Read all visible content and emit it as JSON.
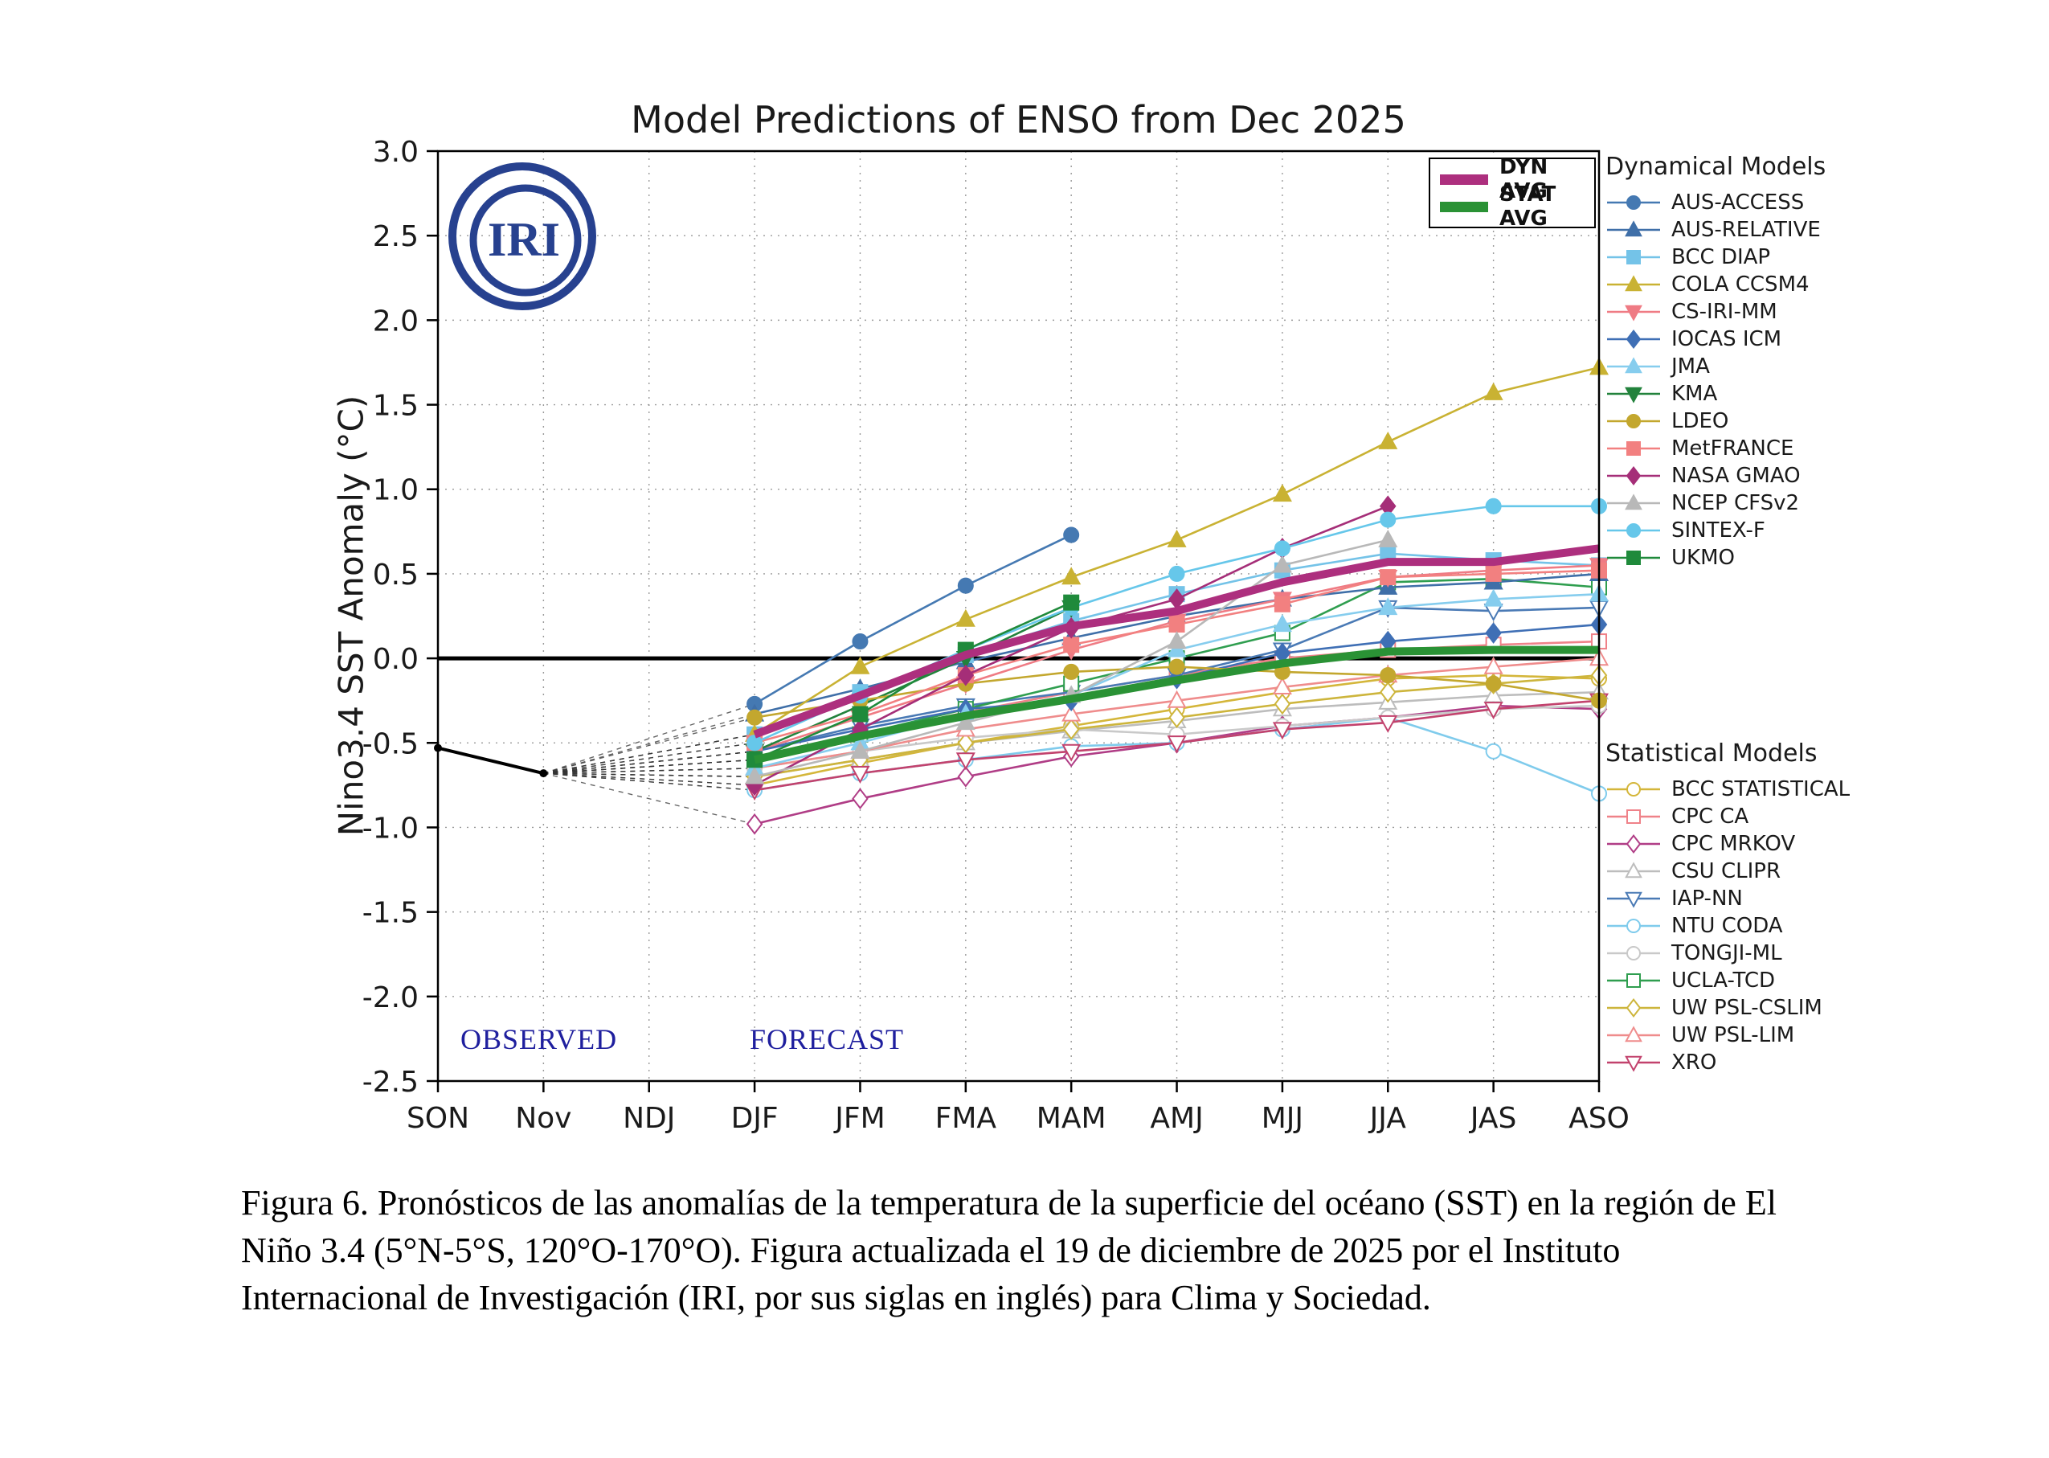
{
  "labels": {
    "observed": "OBSERVED",
    "forecast": "FORECAST",
    "dynamical_header": "Dynamical Models",
    "statistical_header": "Statistical Models",
    "logo_text": "IRI"
  },
  "caption": "Figura 6. Pronósticos de las anomalías de la temperatura de la superficie del océano (SST) en la región de El Niño 3.4 (5°N-5°S, 120°O-170°O). Figura actualizada el 19 de diciembre de 2025 por el Instituto Internacional de Investigación (IRI, por sus siglas en inglés) para Clima y Sociedad.",
  "chart_data": {
    "type": "line",
    "title": "Model Predictions of ENSO from Dec 2025",
    "ylabel": "Nino3.4 SST Anomaly (°C)",
    "ylim": [
      -2.5,
      3.0
    ],
    "ytick_step": 0.5,
    "grid": true,
    "x_categories": [
      "SON",
      "Nov",
      "NDJ",
      "DJF",
      "JFM",
      "FMA",
      "MAM",
      "AMJ",
      "MJJ",
      "JJA",
      "JAS",
      "ASO"
    ],
    "forecast_start_index": 3,
    "observed": {
      "x": [
        "SON",
        "Nov"
      ],
      "values": [
        -0.53,
        -0.68
      ]
    },
    "averages": [
      {
        "name": "DYN AVG",
        "color": "#ad2f7e",
        "values": [
          -0.45,
          -0.22,
          0.02,
          0.19,
          0.28,
          0.45,
          0.57,
          0.57,
          0.65
        ]
      },
      {
        "name": "STAT AVG",
        "color": "#2a9235",
        "values": [
          -0.6,
          -0.46,
          -0.34,
          -0.24,
          -0.13,
          -0.03,
          0.04,
          0.05,
          0.05
        ]
      }
    ],
    "dynamical_models": [
      {
        "name": "AUS-ACCESS",
        "color": "#4579b2",
        "marker": "circle",
        "fill": "solid",
        "values": [
          -0.27,
          0.1,
          0.43,
          0.73
        ]
      },
      {
        "name": "AUS-RELATIVE",
        "color": "#3f6fa8",
        "marker": "triangle",
        "fill": "solid",
        "values": [
          -0.33,
          -0.18,
          -0.02,
          0.12,
          0.25,
          0.35,
          0.42,
          0.45,
          0.5
        ]
      },
      {
        "name": "BCC DIAP",
        "color": "#74c3e8",
        "marker": "square",
        "fill": "solid",
        "values": [
          -0.45,
          -0.2,
          0.02,
          0.22,
          0.38,
          0.52,
          0.62,
          0.58,
          0.55
        ]
      },
      {
        "name": "COLA CCSM4",
        "color": "#c9b233",
        "marker": "triangle",
        "fill": "solid",
        "values": [
          -0.45,
          -0.05,
          0.23,
          0.48,
          0.7,
          0.97,
          1.28,
          1.57,
          1.72
        ]
      },
      {
        "name": "CS-IRI-MM",
        "color": "#ef7b84",
        "marker": "triangle-down",
        "fill": "solid",
        "values": [
          -0.55,
          -0.35,
          -0.15,
          0.05,
          0.22,
          0.35,
          0.48,
          0.52,
          0.55
        ]
      },
      {
        "name": "IOCAS ICM",
        "color": "#3f6fb5",
        "marker": "diamond",
        "fill": "solid",
        "values": [
          -0.55,
          -0.42,
          -0.3,
          -0.25,
          -0.12,
          0.03,
          0.1,
          0.15,
          0.2
        ]
      },
      {
        "name": "JMA",
        "color": "#86cdee",
        "marker": "triangle",
        "fill": "solid",
        "values": [
          -0.65,
          -0.5,
          -0.33,
          -0.22,
          0.05,
          0.2,
          0.3,
          0.35,
          0.38
        ]
      },
      {
        "name": "KMA",
        "color": "#22823c",
        "marker": "triangle-down",
        "fill": "solid",
        "values": [
          -0.55,
          -0.28,
          0.0,
          0.3
        ]
      },
      {
        "name": "LDEO",
        "color": "#c3a72e",
        "marker": "circle",
        "fill": "solid",
        "values": [
          -0.35,
          -0.25,
          -0.15,
          -0.08,
          -0.05,
          -0.08,
          -0.1,
          -0.15,
          -0.25
        ]
      },
      {
        "name": "MetFRANCE",
        "color": "#f28080",
        "marker": "square",
        "fill": "solid",
        "values": [
          -0.5,
          -0.33,
          -0.1,
          0.08,
          0.2,
          0.32,
          0.48,
          0.5,
          0.52
        ]
      },
      {
        "name": "NASA GMAO",
        "color": "#a52e78",
        "marker": "diamond",
        "fill": "solid",
        "values": [
          -0.75,
          -0.42,
          -0.1,
          0.18,
          0.35,
          0.65,
          0.9
        ]
      },
      {
        "name": "NCEP CFSv2",
        "color": "#b8b8b8",
        "marker": "triangle",
        "fill": "solid",
        "values": [
          -0.7,
          -0.55,
          -0.38,
          -0.22,
          0.1,
          0.55,
          0.7
        ]
      },
      {
        "name": "SINTEX-F",
        "color": "#66c7ea",
        "marker": "circle",
        "fill": "solid",
        "values": [
          -0.5,
          -0.22,
          0.05,
          0.3,
          0.5,
          0.65,
          0.82,
          0.9,
          0.9
        ]
      },
      {
        "name": "UKMO",
        "color": "#1f8a3b",
        "marker": "square",
        "fill": "solid",
        "values": [
          -0.6,
          -0.33,
          0.05,
          0.33
        ]
      }
    ],
    "statistical_models": [
      {
        "name": "BCC STATISTICAL",
        "color": "#d4b63a",
        "marker": "circle",
        "fill": "open",
        "values": [
          -0.75,
          -0.62,
          -0.5,
          -0.4,
          -0.3,
          -0.2,
          -0.12,
          -0.1,
          -0.12
        ]
      },
      {
        "name": "CPC CA",
        "color": "#ef8289",
        "marker": "square",
        "fill": "open",
        "values": [
          -0.6,
          -0.45,
          -0.32,
          -0.2,
          -0.1,
          0.0,
          0.05,
          0.08,
          0.1
        ]
      },
      {
        "name": "CPC MRKOV",
        "color": "#b03d86",
        "marker": "diamond",
        "fill": "open",
        "values": [
          -0.98,
          -0.83,
          -0.7,
          -0.58,
          -0.5,
          -0.4,
          -0.35,
          -0.28,
          -0.3
        ]
      },
      {
        "name": "CSU CLIPR",
        "color": "#bdbdbd",
        "marker": "triangle",
        "fill": "open",
        "values": [
          -0.7,
          -0.6,
          -0.5,
          -0.43,
          -0.37,
          -0.3,
          -0.26,
          -0.22,
          -0.2
        ]
      },
      {
        "name": "IAP-NN",
        "color": "#4a7ab5",
        "marker": "triangle-down",
        "fill": "open",
        "values": [
          -0.55,
          -0.4,
          -0.28,
          -0.2,
          -0.1,
          0.05,
          0.3,
          0.28,
          0.3
        ]
      },
      {
        "name": "NTU CODA",
        "color": "#7fcbec",
        "marker": "circle",
        "fill": "open",
        "values": [
          -0.78,
          -0.68,
          -0.6,
          -0.52,
          -0.5,
          -0.42,
          -0.35,
          -0.55,
          -0.8
        ]
      },
      {
        "name": "TONGJI-ML",
        "color": "#c9c9c9",
        "marker": "circle",
        "fill": "open",
        "values": [
          -0.65,
          -0.55,
          -0.47,
          -0.42,
          -0.45,
          -0.4,
          -0.35,
          -0.3,
          -0.28
        ]
      },
      {
        "name": "UCLA-TCD",
        "color": "#2f9e4f",
        "marker": "square",
        "fill": "open",
        "values": [
          -0.6,
          -0.45,
          -0.3,
          -0.15,
          0.0,
          0.15,
          0.45,
          0.47,
          0.42
        ]
      },
      {
        "name": "UW PSL-CSLIM",
        "color": "#cdb53c",
        "marker": "diamond",
        "fill": "open",
        "values": [
          -0.7,
          -0.6,
          -0.5,
          -0.42,
          -0.35,
          -0.27,
          -0.2,
          -0.15,
          -0.1
        ]
      },
      {
        "name": "UW PSL-LIM",
        "color": "#ef8c8c",
        "marker": "triangle",
        "fill": "open",
        "values": [
          -0.65,
          -0.55,
          -0.42,
          -0.33,
          -0.25,
          -0.17,
          -0.1,
          -0.05,
          0.0
        ]
      },
      {
        "name": "XRO",
        "color": "#c2426d",
        "marker": "triangle-down",
        "fill": "open",
        "values": [
          -0.78,
          -0.68,
          -0.6,
          -0.55,
          -0.5,
          -0.42,
          -0.38,
          -0.3,
          -0.25
        ]
      }
    ]
  }
}
